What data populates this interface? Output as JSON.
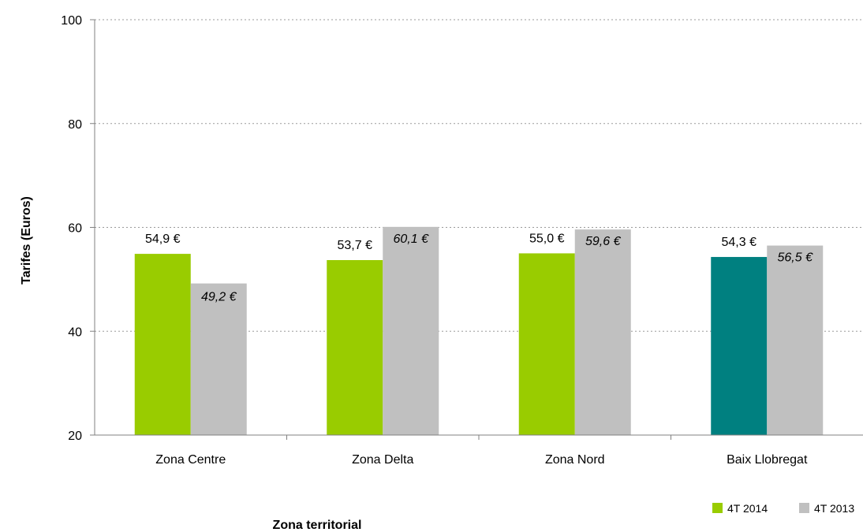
{
  "chart_data": {
    "type": "bar",
    "title": "",
    "xlabel": "Zona territorial",
    "ylabel": "Tarifes (Euros)",
    "ylim": [
      20,
      100
    ],
    "yticks": [
      20,
      40,
      60,
      80,
      100
    ],
    "grid": true,
    "legend_position": "bottom-right",
    "categories": [
      "Zona Centre",
      "Zona Delta",
      "Zona Nord",
      "Baix Llobregat"
    ],
    "series": [
      {
        "name": "4T 2014",
        "color": "#99cc00",
        "point_colors": [
          "#99cc00",
          "#99cc00",
          "#99cc00",
          "#008080"
        ],
        "values": [
          54.9,
          53.7,
          55.0,
          54.3
        ],
        "labels": [
          "54,9 €",
          "53,7 €",
          "55,0 €",
          "54,3 €"
        ],
        "label_style": "normal"
      },
      {
        "name": "4T 2013",
        "color": "#c0c0c0",
        "values": [
          49.2,
          60.1,
          59.6,
          56.5
        ],
        "labels": [
          "49,2 €",
          "60,1 €",
          "59,6 €",
          "56,5 €"
        ],
        "label_style": "italic"
      }
    ]
  }
}
